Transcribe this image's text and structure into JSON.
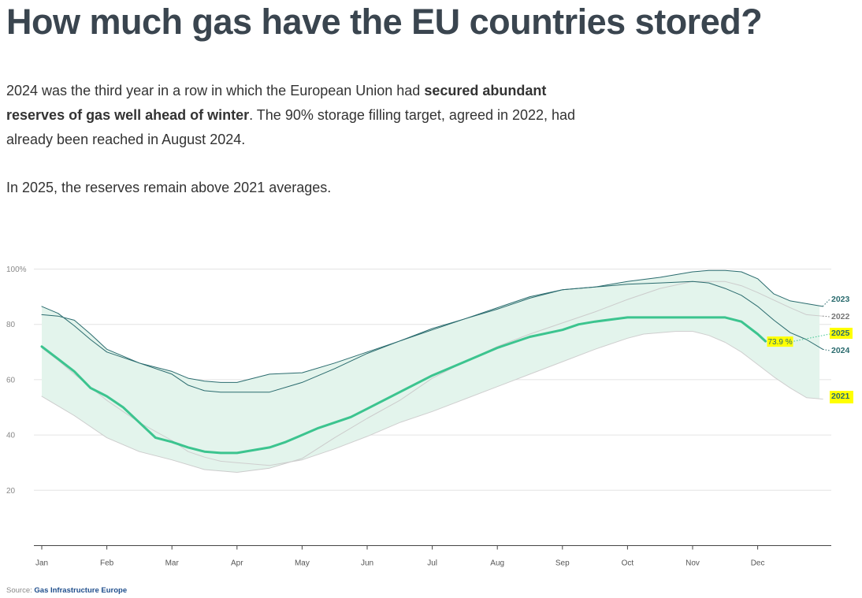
{
  "page": {
    "title": "How much gas have the EU countries stored?",
    "intro_p1_a": "2024 was the third year in a row in which the European Union had ",
    "intro_p1_bold": "secured abundant reserves of gas well ahead of winter",
    "intro_p1_b": ". The 90% storage filling target, agreed in 2022, had already been reached in August 2024.",
    "intro_p2": "In 2025, the reserves remain above 2021 averages.",
    "source_prefix": "Source: ",
    "source_name": "Gas Infrastructure Europe"
  },
  "colors": {
    "band_fill": "#e3f4ec",
    "line_2025": "#3cc48f",
    "line_2023": "#2a6b6e",
    "line_2024": "#2a6b6e",
    "line_2022": "#cccccc",
    "line_2021": "#cfcfcf",
    "highlight": "#ffff00",
    "grid": "#e4e4e4"
  },
  "chart_data": {
    "type": "line",
    "title": "",
    "xlabel": "",
    "ylabel": "",
    "ylim": [
      0,
      100
    ],
    "y_ticks": [
      20,
      40,
      60,
      80,
      100
    ],
    "y_tick_labels": [
      "20",
      "40",
      "60",
      "80",
      "100%"
    ],
    "x_ticks": [
      "Jan",
      "Feb",
      "Mar",
      "Apr",
      "May",
      "Jun",
      "Jul",
      "Aug",
      "Sep",
      "Oct",
      "Nov",
      "Dec"
    ],
    "x_unit": "month (1 = 1 Jan)",
    "band": {
      "from": "min",
      "to": "max",
      "note": "shaded range between years"
    },
    "series": [
      {
        "name": "2023",
        "x": [
          1.0,
          1.25,
          1.5,
          1.75,
          2.0,
          2.5,
          3.0,
          3.25,
          3.5,
          3.75,
          4.0,
          4.5,
          5.0,
          5.5,
          6.0,
          6.5,
          7.0,
          7.5,
          8.0,
          8.5,
          9.0,
          9.5,
          10.0,
          10.5,
          11.0,
          11.25,
          11.5,
          11.75,
          12.0,
          12.25,
          12.5,
          12.75,
          13.0
        ],
        "y": [
          83.5,
          83,
          81.5,
          76.5,
          71,
          66,
          63,
          60.5,
          59.5,
          59,
          59,
          62,
          62.5,
          66,
          70,
          74,
          78,
          82,
          86,
          90,
          92.5,
          93.5,
          95.5,
          97,
          99,
          99.5,
          99.5,
          99,
          96.5,
          91,
          88.5,
          87.5,
          86.5
        ]
      },
      {
        "name": "2022",
        "x": [
          1.0,
          1.5,
          2.0,
          2.5,
          3.0,
          3.5,
          4.0,
          4.5,
          5.0,
          5.5,
          6.0,
          6.5,
          7.0,
          7.5,
          8.0,
          8.5,
          9.0,
          9.5,
          10.0,
          10.5,
          11.0,
          11.5,
          11.75,
          12.0,
          12.5,
          12.75,
          13.0
        ],
        "y": [
          54,
          47,
          39,
          34,
          31,
          27.5,
          26.5,
          28,
          31.5,
          39,
          46,
          52.5,
          60.5,
          66.5,
          72,
          76.5,
          80.5,
          84.5,
          89,
          93,
          95.5,
          95.5,
          94,
          91.5,
          86,
          83.5,
          83
        ]
      },
      {
        "name": "2025",
        "x": [
          1.0,
          1.25,
          1.5,
          1.75,
          2.0,
          2.25,
          2.5,
          2.75,
          3.0,
          3.25,
          3.5,
          3.75,
          4.0,
          4.25,
          4.5,
          4.75,
          5.0,
          5.25,
          5.5,
          5.75,
          6.0,
          6.5,
          7.0,
          7.5,
          8.0,
          8.5,
          9.0,
          9.25,
          9.5,
          10.0,
          10.25,
          10.5,
          10.75,
          11.0,
          11.25,
          11.5,
          11.75,
          12.0,
          12.12
        ],
        "y": [
          72,
          67.5,
          63,
          57,
          54,
          50,
          44.5,
          39,
          37.5,
          35.5,
          34,
          33.5,
          33.5,
          34.5,
          35.5,
          37.5,
          40,
          42.5,
          44.5,
          46.5,
          49.5,
          55.5,
          61.5,
          66.5,
          71.5,
          75.5,
          78,
          80,
          81,
          82.5,
          82.5,
          82.5,
          82.5,
          82.5,
          82.5,
          82.5,
          81,
          76.5,
          73.9
        ]
      },
      {
        "name": "2024",
        "x": [
          1.0,
          1.25,
          1.5,
          1.75,
          2.0,
          2.5,
          3.0,
          3.25,
          3.5,
          3.75,
          4.0,
          4.25,
          4.5,
          5.0,
          5.5,
          6.0,
          6.5,
          7.0,
          7.5,
          8.0,
          8.5,
          9.0,
          9.5,
          10.0,
          10.5,
          11.0,
          11.25,
          11.5,
          11.75,
          12.0,
          12.25,
          12.5,
          12.75,
          13.0
        ],
        "y": [
          86.5,
          84,
          79.5,
          74.5,
          70,
          66,
          62,
          58,
          56,
          55.5,
          55.5,
          55.5,
          55.5,
          59,
          64,
          69.5,
          74,
          78.5,
          82,
          85.5,
          89.5,
          92.5,
          93.5,
          94.5,
          95,
          95.5,
          95,
          93,
          90.5,
          86.5,
          81.5,
          77,
          74.5,
          71
        ]
      },
      {
        "name": "2021",
        "x": [
          1.0,
          1.25,
          1.5,
          2.0,
          2.5,
          3.0,
          3.25,
          3.5,
          3.75,
          4.0,
          4.5,
          5.0,
          5.5,
          6.0,
          6.5,
          7.0,
          7.5,
          8.0,
          8.5,
          9.0,
          9.5,
          10.0,
          10.25,
          10.5,
          10.75,
          11.0,
          11.25,
          11.5,
          11.75,
          12.0,
          12.25,
          12.5,
          12.75,
          13.0
        ],
        "y": [
          71.5,
          67,
          62,
          52.5,
          44.5,
          38,
          34,
          32,
          30.5,
          30,
          29,
          31,
          35,
          39.5,
          44.5,
          48.5,
          53,
          57.5,
          62,
          66.5,
          71,
          75,
          76.5,
          77,
          77.5,
          77.5,
          76,
          73.5,
          70,
          65.5,
          61,
          57,
          53.5,
          53
        ]
      }
    ],
    "end_labels": [
      {
        "name": "2023",
        "y": 86.5,
        "color": "#2a6b6e",
        "highlight": false
      },
      {
        "name": "2022",
        "y": 83,
        "color": "#777777",
        "highlight": false
      },
      {
        "name": "2025",
        "y": 76,
        "color": "#2a6b6e",
        "highlight": true
      },
      {
        "name": "2024",
        "y": 71,
        "color": "#2a6b6e",
        "highlight": false
      },
      {
        "name": "2021",
        "y": 53,
        "color": "#2a6b6e",
        "highlight": true
      }
    ],
    "annotation": {
      "series": "2025",
      "x": 12.12,
      "y": 73.9,
      "text": "73.9 %"
    }
  }
}
